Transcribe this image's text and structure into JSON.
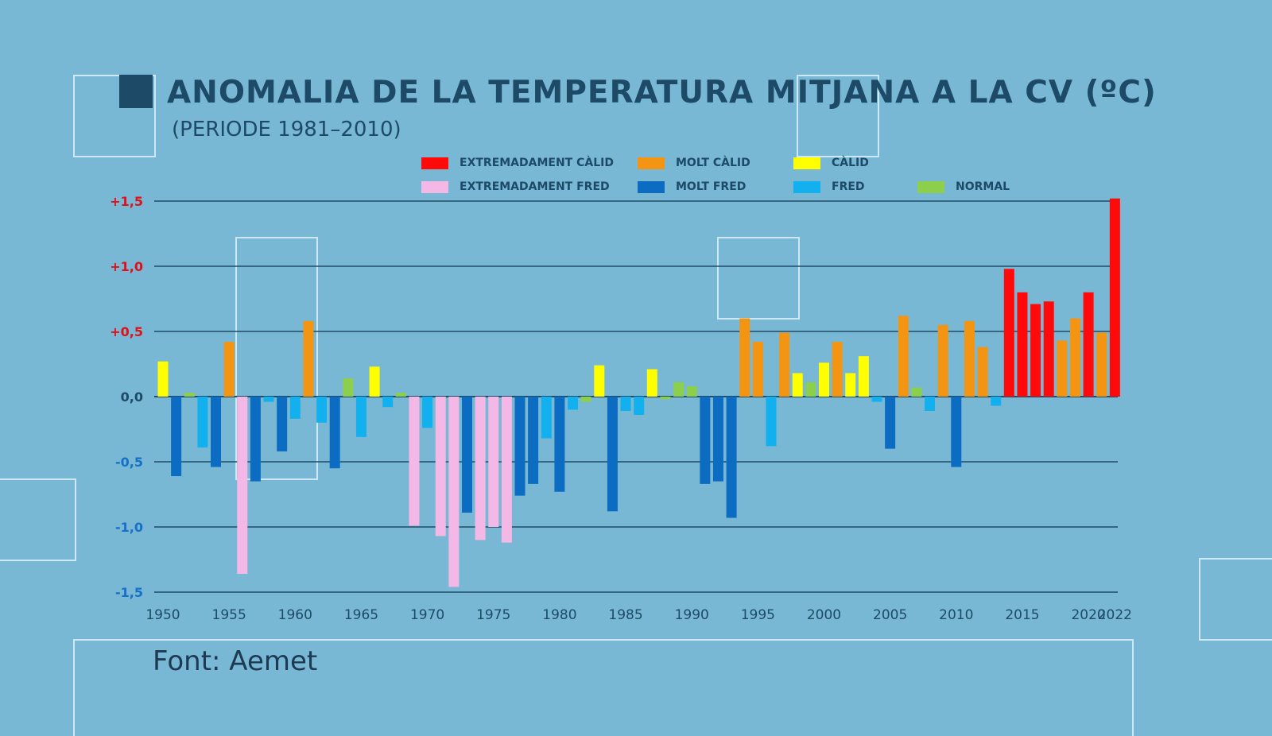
{
  "header": {
    "title": "ANOMALIA DE LA TEMPERATURA MITJANA A LA CV (ºC)",
    "subtitle": "(PERIODE 1981–2010)"
  },
  "source": "Font: Aemet",
  "colors": {
    "background": "#78b8d4",
    "title": "#1d4a66",
    "grid": "#1f4c66",
    "positive_tick": "#e0101a",
    "negative_tick": "#1470c8",
    "zero_tick": "#1d4a66"
  },
  "chart_data": {
    "type": "bar",
    "title": "ANOMALIA DE LA TEMPERATURA MITJANA A LA CV (ºC)",
    "subtitle": "(PERIODE 1981–2010)",
    "ylim": [
      -1.5,
      1.5
    ],
    "yticks": [
      {
        "v": 1.5,
        "label": "+1,5"
      },
      {
        "v": 1.0,
        "label": "+1,0"
      },
      {
        "v": 0.5,
        "label": "+0,5"
      },
      {
        "v": 0,
        "label": "0,0"
      },
      {
        "v": -0.5,
        "label": "-0,5"
      },
      {
        "v": -1.0,
        "label": "-1,0"
      },
      {
        "v": -1.5,
        "label": "-1,5"
      }
    ],
    "xticks": [
      "1950",
      "1955",
      "1960",
      "1965",
      "1970",
      "1975",
      "1980",
      "1985",
      "1990",
      "1995",
      "2000",
      "2005",
      "2010",
      "2015",
      "2020",
      "2022"
    ],
    "grid": true,
    "legend_placement": "top",
    "legend": [
      {
        "key": "EC",
        "label": "EXTREMADAMENT CÀLID",
        "color": "#ff0a0a"
      },
      {
        "key": "MC",
        "label": "MOLT CÀLID",
        "color": "#f39412"
      },
      {
        "key": "C",
        "label": "CÀLID",
        "color": "#ffff00"
      },
      {
        "key": "EF",
        "label": "EXTREMADAMENT FRED",
        "color": "#f4b8e6"
      },
      {
        "key": "MF",
        "label": "MOLT FRED",
        "color": "#0b6cc2"
      },
      {
        "key": "F",
        "label": "FRED",
        "color": "#12b0ee"
      },
      {
        "key": "N",
        "label": "NORMAL",
        "color": "#8ccf4c"
      }
    ],
    "start_year": 1950,
    "values": [
      0.27,
      -0.61,
      0.03,
      -0.39,
      -0.54,
      0.42,
      -1.36,
      -0.65,
      -0.04,
      -0.42,
      -0.17,
      0.58,
      -0.2,
      -0.55,
      0.14,
      -0.31,
      0.23,
      -0.08,
      0.03,
      -0.99,
      -0.24,
      -1.07,
      -1.46,
      -0.89,
      -1.1,
      -1.0,
      -1.12,
      -0.76,
      -0.67,
      -0.32,
      -0.73,
      -0.1,
      -0.04,
      0.24,
      -0.88,
      -0.11,
      -0.14,
      0.21,
      -0.02,
      0.11,
      0.08,
      -0.67,
      -0.65,
      -0.93,
      0.6,
      0.42,
      -0.38,
      0.49,
      0.18,
      0.11,
      0.26,
      0.42,
      0.18,
      0.31,
      -0.04,
      -0.4,
      0.62,
      0.07,
      -0.11,
      0.55,
      -0.54,
      0.58,
      0.38,
      -0.07,
      0.98,
      0.8,
      0.71,
      0.73,
      0.43,
      0.6,
      0.8,
      0.49,
      1.52
    ],
    "categories": [
      "C",
      "MF",
      "N",
      "F",
      "MF",
      "MC",
      "EF",
      "MF",
      "F",
      "MF",
      "F",
      "MC",
      "F",
      "MF",
      "N",
      "F",
      "C",
      "F",
      "N",
      "EF",
      "F",
      "EF",
      "EF",
      "MF",
      "EF",
      "EF",
      "EF",
      "MF",
      "MF",
      "F",
      "MF",
      "F",
      "N",
      "C",
      "MF",
      "F",
      "F",
      "C",
      "N",
      "N",
      "N",
      "MF",
      "MF",
      "MF",
      "MC",
      "MC",
      "F",
      "MC",
      "C",
      "N",
      "C",
      "MC",
      "C",
      "C",
      "F",
      "MF",
      "MC",
      "N",
      "F",
      "MC",
      "MF",
      "MC",
      "MC",
      "F",
      "EC",
      "EC",
      "EC",
      "EC",
      "MC",
      "MC",
      "EC",
      "MC",
      "EC"
    ]
  }
}
